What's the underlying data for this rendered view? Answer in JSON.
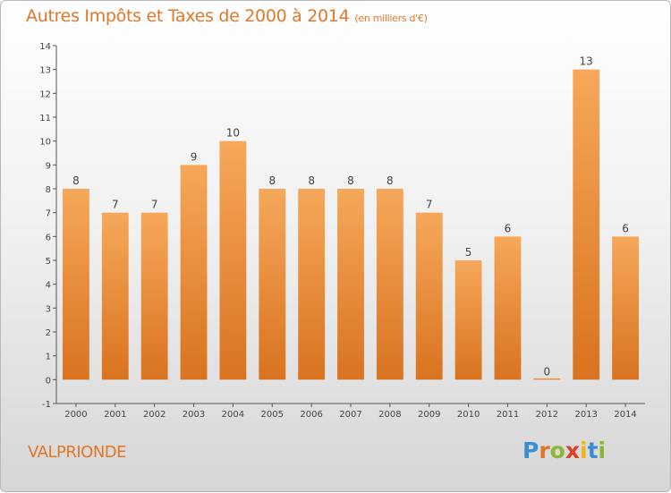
{
  "title": "Autres Impôts et Taxes de 2000 à 2014",
  "subtitle": "(en milliers d'€)",
  "town": "VALPRIONDE",
  "logo": {
    "letters": [
      "P",
      "r",
      "o",
      "x",
      "i",
      "t",
      "i"
    ],
    "colors": [
      "#3a8fd4",
      "#e0772a",
      "#8ab832",
      "#e23d28",
      "#f2b316",
      "#3a8fd4",
      "#8ab832"
    ]
  },
  "colors": {
    "bar_top": "#f6a85a",
    "bar_bottom": "#d9731f",
    "title": "#e0772a"
  },
  "chart_data": {
    "type": "bar",
    "title": "Autres Impôts et Taxes de 2000 à 2014",
    "subtitle": "(en milliers d'€)",
    "categories": [
      "2000",
      "2001",
      "2002",
      "2003",
      "2004",
      "2005",
      "2006",
      "2007",
      "2008",
      "2009",
      "2010",
      "2011",
      "2012",
      "2013",
      "2014"
    ],
    "values": [
      8,
      7,
      7,
      9,
      10,
      8,
      8,
      8,
      8,
      7,
      5,
      6,
      0,
      13,
      6
    ],
    "data_labels": [
      "8",
      "7",
      "7",
      "9",
      "10",
      "8",
      "8",
      "8",
      "8",
      "7",
      "5",
      "6",
      "0",
      "13",
      "6"
    ],
    "ylim": [
      -1,
      14
    ],
    "yticks": [
      "-1",
      "0",
      "1",
      "2",
      "3",
      "4",
      "5",
      "6",
      "7",
      "8",
      "9",
      "10",
      "11",
      "12",
      "13",
      "14"
    ],
    "grid": false,
    "legend": "none"
  }
}
